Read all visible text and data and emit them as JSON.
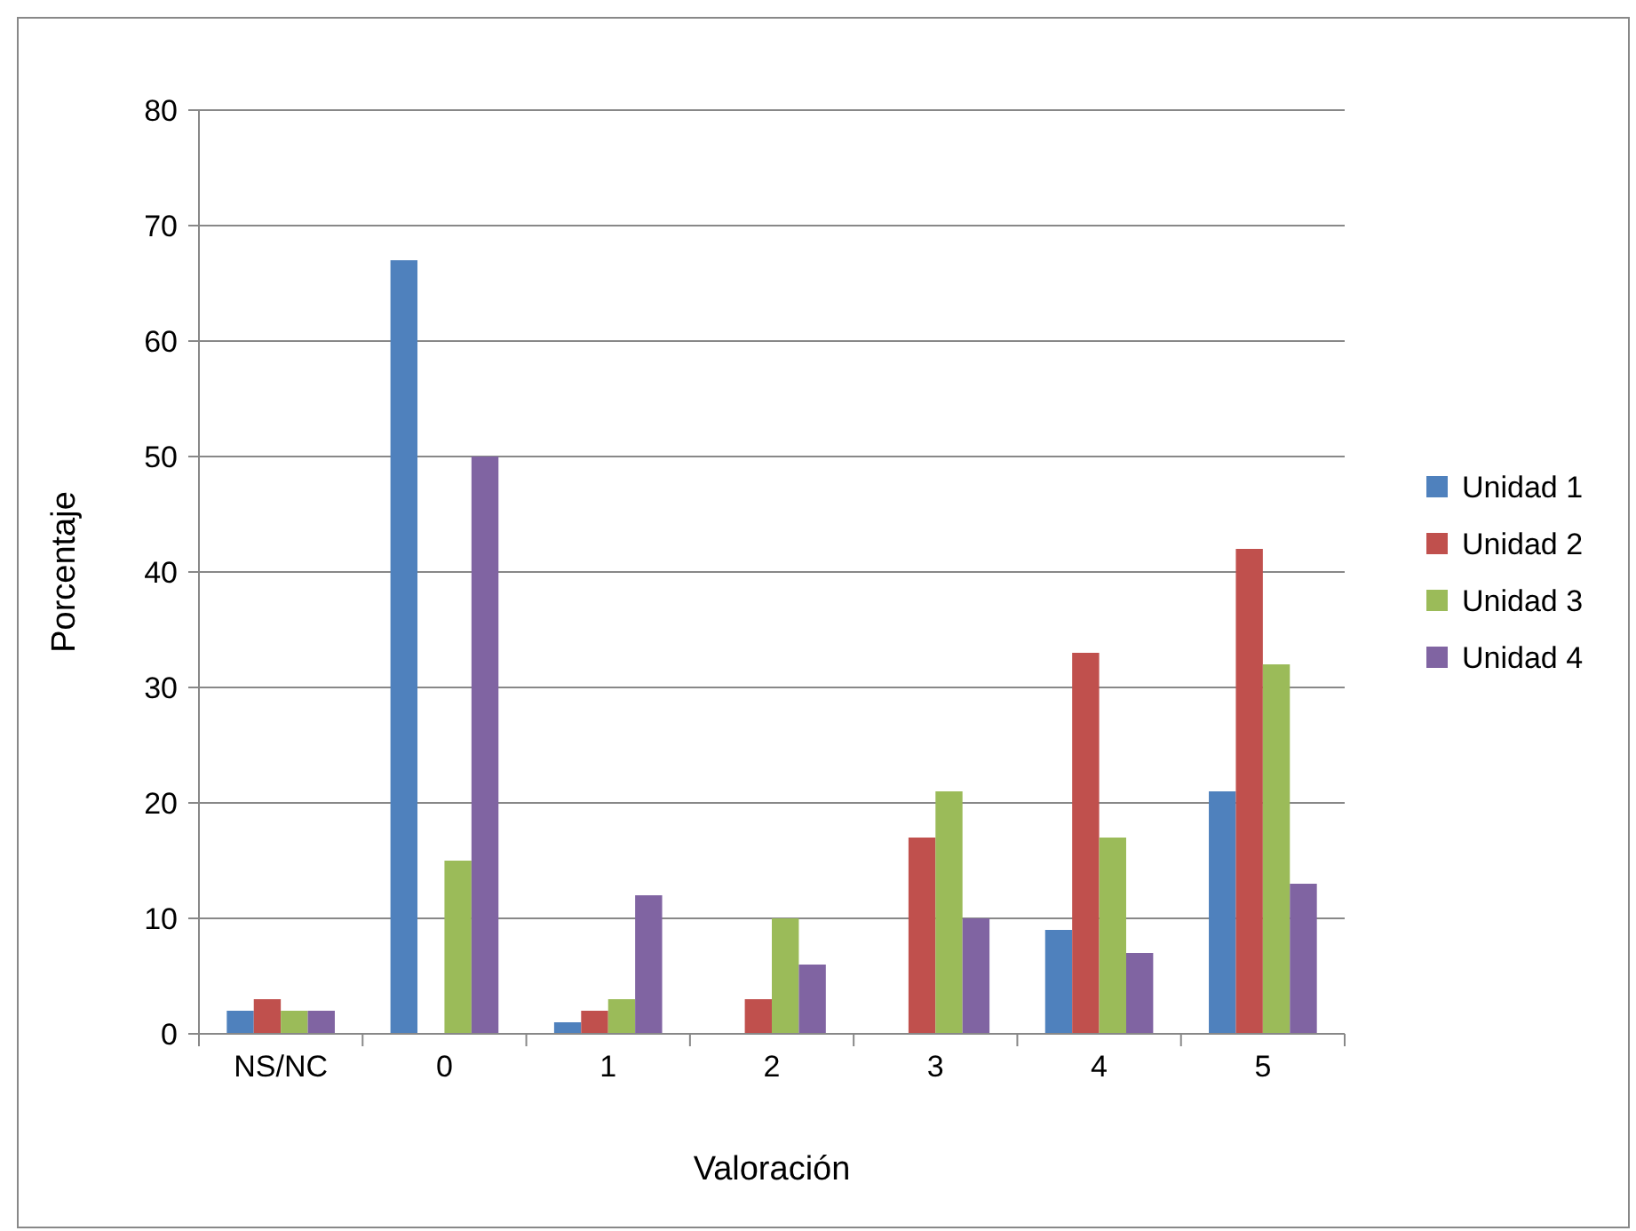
{
  "chart_data": {
    "type": "bar",
    "xlabel": "Valoración",
    "ylabel": "Porcentaje",
    "categories": [
      "NS/NC",
      "0",
      "1",
      "2",
      "3",
      "4",
      "5"
    ],
    "series": [
      {
        "name": "Unidad 1",
        "color": "#4f81bd",
        "values": [
          2,
          67,
          1,
          0,
          0,
          9,
          21
        ]
      },
      {
        "name": "Unidad 2",
        "color": "#c0504d",
        "values": [
          3,
          0,
          2,
          3,
          17,
          33,
          42
        ]
      },
      {
        "name": "Unidad 3",
        "color": "#9bbb59",
        "values": [
          2,
          15,
          3,
          10,
          21,
          17,
          32
        ]
      },
      {
        "name": "Unidad 4",
        "color": "#8064a2",
        "values": [
          2,
          50,
          12,
          6,
          10,
          7,
          13
        ]
      }
    ],
    "ylim": [
      0,
      80
    ],
    "yticks": [
      0,
      10,
      20,
      30,
      40,
      50,
      60,
      70,
      80
    ],
    "grid": "y",
    "legend": "right"
  }
}
